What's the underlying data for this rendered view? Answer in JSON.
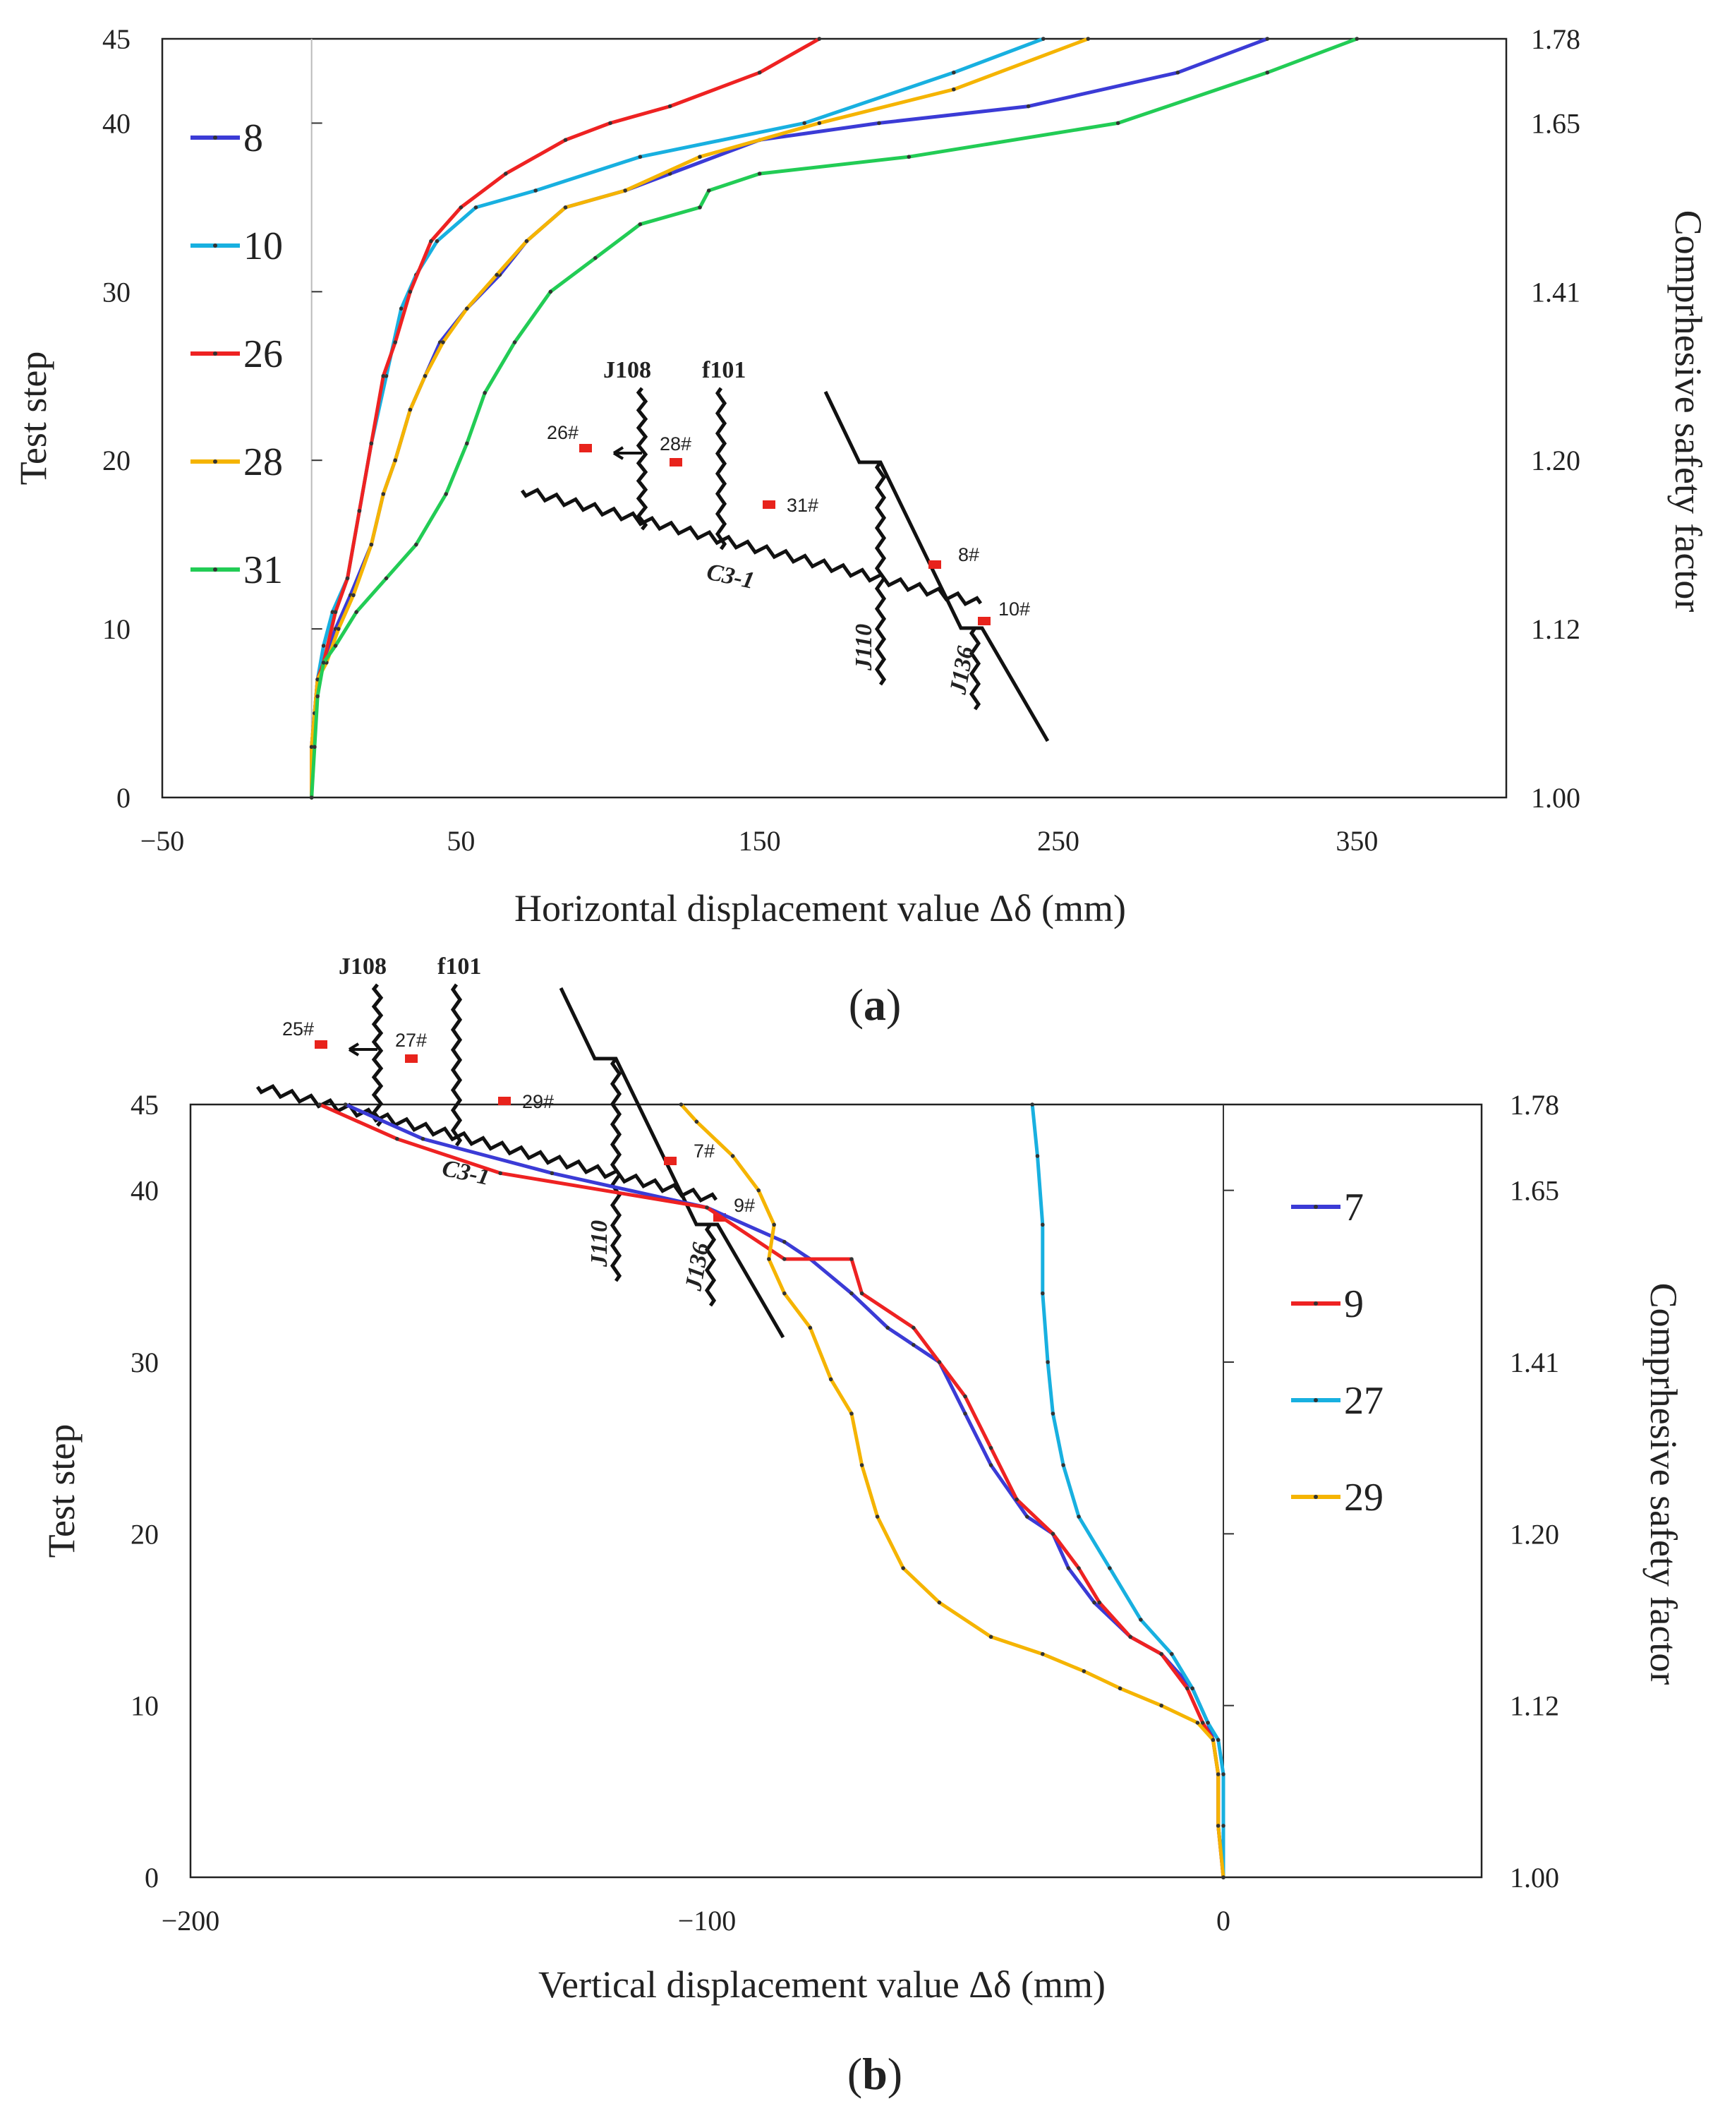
{
  "chart_data": [
    {
      "type": "line",
      "panel_label": "a",
      "xlabel": "Horizontal displacement value Δδ (mm)",
      "ylabel": "Test step",
      "y2label": "Comprhesive safety factor",
      "xlim": [
        -50,
        400
      ],
      "ylim": [
        0,
        45
      ],
      "x_ticks": [
        "−50",
        "50",
        "150",
        "250",
        "350"
      ],
      "x_tick_values": [
        -50,
        50,
        150,
        250,
        350
      ],
      "y_ticks": [
        "0",
        "10",
        "20",
        "30",
        "40",
        "45"
      ],
      "y_tick_values": [
        0,
        10,
        20,
        30,
        40,
        45
      ],
      "y2_ticks": [
        "1.00",
        "1.12",
        "1.20",
        "1.41",
        "1.65",
        "1.78"
      ],
      "y2_tick_steps": [
        0,
        10,
        20,
        30,
        40,
        45
      ],
      "legend_position": "left",
      "series": [
        {
          "name": "8",
          "color": "#3b3bd6",
          "x": [
            0,
            0,
            1,
            2,
            4,
            8,
            13,
            20,
            24,
            28,
            33,
            38,
            43,
            52,
            63,
            72,
            85,
            105,
            120,
            150,
            190,
            240,
            290,
            320
          ],
          "y": [
            0,
            3,
            5,
            7,
            8,
            10,
            12,
            15,
            18,
            20,
            23,
            25,
            27,
            29,
            31,
            33,
            35,
            36,
            37,
            39,
            40,
            41,
            43,
            45
          ]
        },
        {
          "name": "10",
          "color": "#18b0e0",
          "x": [
            0,
            0,
            1,
            2,
            4,
            7,
            12,
            16,
            20,
            25,
            30,
            35,
            42,
            55,
            75,
            110,
            165,
            215,
            245
          ],
          "y": [
            0,
            3,
            5,
            7,
            9,
            11,
            13,
            17,
            21,
            25,
            29,
            31,
            33,
            35,
            36,
            38,
            40,
            43,
            45
          ]
        },
        {
          "name": "26",
          "color": "#ee2222",
          "x": [
            0,
            0,
            1,
            2,
            4,
            8,
            12,
            16,
            20,
            24,
            28,
            33,
            40,
            50,
            65,
            85,
            100,
            120,
            150,
            170
          ],
          "y": [
            0,
            3,
            5,
            7,
            8,
            11,
            13,
            17,
            21,
            25,
            27,
            30,
            33,
            35,
            37,
            39,
            40,
            41,
            43,
            45
          ]
        },
        {
          "name": "28",
          "color": "#f5b400",
          "x": [
            0,
            0,
            1,
            2,
            5,
            9,
            14,
            20,
            24,
            28,
            33,
            38,
            44,
            52,
            62,
            72,
            85,
            105,
            130,
            170,
            215,
            260
          ],
          "y": [
            0,
            3,
            5,
            7,
            8,
            10,
            12,
            15,
            18,
            20,
            23,
            25,
            27,
            29,
            31,
            33,
            35,
            36,
            38,
            40,
            42,
            45
          ]
        },
        {
          "name": "31",
          "color": "#22cc55",
          "x": [
            0,
            1,
            2,
            4,
            8,
            15,
            25,
            35,
            45,
            52,
            58,
            68,
            80,
            95,
            110,
            130,
            133,
            150,
            200,
            270,
            320,
            350
          ],
          "y": [
            0,
            3,
            6,
            8,
            9,
            11,
            13,
            15,
            18,
            21,
            24,
            27,
            30,
            32,
            34,
            35,
            36,
            37,
            38,
            40,
            43,
            45
          ]
        }
      ],
      "inset_labels": {
        "fault_j108": "J108",
        "fault_f101": "f101",
        "fault_c31": "C3-1",
        "fault_j110": "J110",
        "fault_j136": "J136"
      },
      "inset_points": [
        "26#",
        "28#",
        "31#",
        "8#",
        "10#"
      ]
    },
    {
      "type": "line",
      "panel_label": "b",
      "xlabel": "Vertical displacement value Δδ (mm)",
      "ylabel": "Test step",
      "y2label": "Comprhesive safety factor",
      "xlim": [
        -200,
        50
      ],
      "ylim": [
        0,
        45
      ],
      "x_ticks": [
        "−200",
        "−100",
        "0"
      ],
      "x_tick_values": [
        -200,
        -100,
        0
      ],
      "y_ticks": [
        "0",
        "10",
        "20",
        "30",
        "40",
        "45"
      ],
      "y_tick_values": [
        0,
        10,
        20,
        30,
        40,
        45
      ],
      "y2_ticks": [
        "1.00",
        "1.12",
        "1.20",
        "1.41",
        "1.65",
        "1.78"
      ],
      "y2_tick_steps": [
        0,
        10,
        20,
        30,
        40,
        45
      ],
      "legend_position": "right",
      "series": [
        {
          "name": "7",
          "color": "#3b3bd6",
          "x": [
            0,
            -1,
            -1,
            -2,
            -3,
            -6,
            -12,
            -18,
            -25,
            -30,
            -33,
            -38,
            -45,
            -50,
            -55,
            -60,
            -65,
            -72,
            -80,
            -85,
            -100,
            -130,
            -155,
            -170
          ],
          "y": [
            0,
            3,
            6,
            8,
            9,
            11,
            13,
            14,
            16,
            18,
            20,
            21,
            24,
            27,
            30,
            31,
            32,
            34,
            36,
            37,
            39,
            41,
            43,
            45
          ]
        },
        {
          "name": "9",
          "color": "#ee2222",
          "x": [
            0,
            -1,
            -1,
            -2,
            -4,
            -7,
            -12,
            -18,
            -24,
            -28,
            -33,
            -40,
            -45,
            -50,
            -55,
            -60,
            -70,
            -72,
            -85,
            -100,
            -140,
            -160,
            -175
          ],
          "y": [
            0,
            3,
            6,
            8,
            9,
            11,
            13,
            14,
            16,
            18,
            20,
            22,
            25,
            28,
            30,
            32,
            34,
            36,
            36,
            39,
            41,
            43,
            45
          ]
        },
        {
          "name": "27",
          "color": "#18b0e0",
          "x": [
            0,
            0,
            0,
            -1,
            -3,
            -6,
            -10,
            -16,
            -22,
            -28,
            -31,
            -33,
            -34,
            -35,
            -35,
            -36,
            -37
          ],
          "y": [
            0,
            3,
            6,
            8,
            9,
            11,
            13,
            15,
            18,
            21,
            24,
            27,
            30,
            34,
            38,
            42,
            45
          ]
        },
        {
          "name": "29",
          "color": "#f5b400",
          "x": [
            0,
            -1,
            -1,
            -2,
            -5,
            -12,
            -20,
            -27,
            -35,
            -45,
            -55,
            -62,
            -67,
            -70,
            -72,
            -76,
            -80,
            -85,
            -88,
            -87,
            -90,
            -95,
            -102,
            -105
          ],
          "y": [
            0,
            3,
            6,
            8,
            9,
            10,
            11,
            12,
            13,
            14,
            16,
            18,
            21,
            24,
            27,
            29,
            32,
            34,
            36,
            38,
            40,
            42,
            44,
            45
          ]
        }
      ],
      "inset_labels": {
        "fault_j108": "J108",
        "fault_f101": "f101",
        "fault_c31": "C3-1",
        "fault_j110": "J110",
        "fault_j136": "J136"
      },
      "inset_points": [
        "25#",
        "27#",
        "29#",
        "7#",
        "9#"
      ]
    }
  ]
}
